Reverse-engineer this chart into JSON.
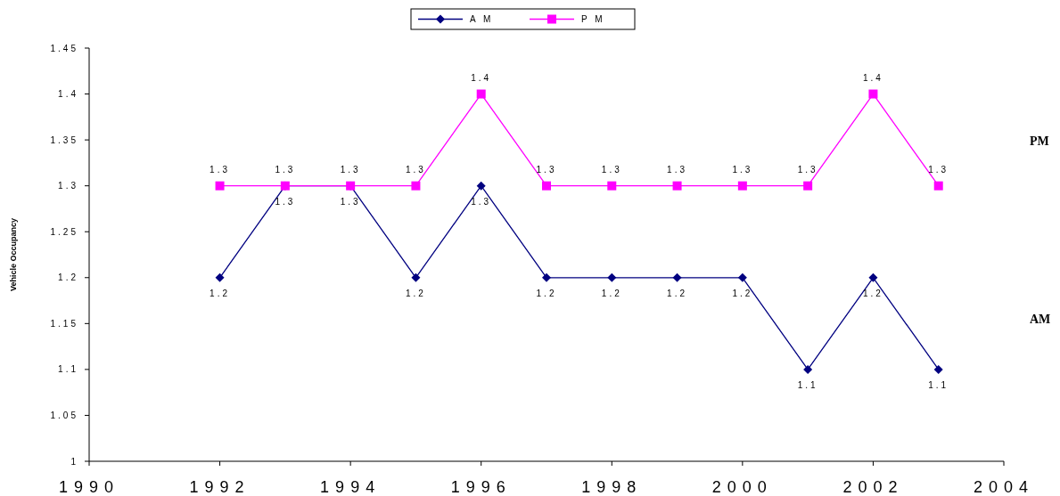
{
  "chart_data": {
    "type": "line",
    "ylabel": "Vehicle Occupancy",
    "x": [
      1992,
      1993,
      1994,
      1995,
      1996,
      1997,
      1998,
      1999,
      2000,
      2001,
      2002,
      2003
    ],
    "series": [
      {
        "name": "A M",
        "color": "#000080",
        "marker": "diamond",
        "values": [
          1.2,
          1.3,
          1.3,
          1.2,
          1.3,
          1.2,
          1.2,
          1.2,
          1.2,
          1.1,
          1.2,
          1.1
        ]
      },
      {
        "name": "P M",
        "color": "#ff00ff",
        "marker": "square",
        "values": [
          1.3,
          1.3,
          1.3,
          1.3,
          1.4,
          1.3,
          1.3,
          1.3,
          1.3,
          1.3,
          1.4,
          1.3
        ]
      }
    ],
    "xlim": [
      1990,
      2004
    ],
    "xticks": [
      1990,
      1992,
      1994,
      1996,
      1998,
      2000,
      2002,
      2004
    ],
    "ylim": [
      1,
      1.45
    ],
    "yticks": [
      1,
      1.05,
      1.1,
      1.15,
      1.2,
      1.25,
      1.3,
      1.35,
      1.4,
      1.45
    ],
    "data_labels": true,
    "legend": "top",
    "grid": false,
    "annotations": [
      "PM",
      "AM"
    ]
  }
}
